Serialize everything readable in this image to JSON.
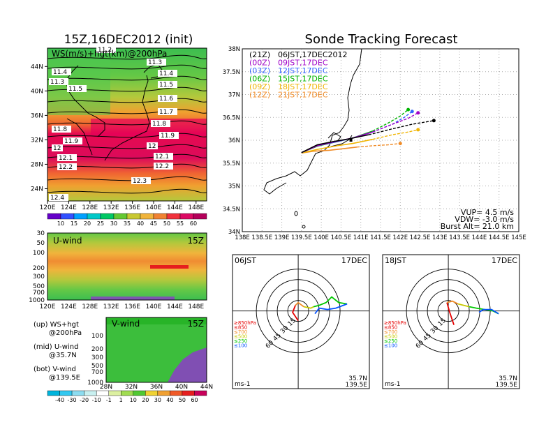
{
  "titles": {
    "left": "15Z,16DEC2012 (init)",
    "right": "Sonde Tracking Forecast"
  },
  "colors": {
    "level_850": "#e60000",
    "level_700": "#f08c28",
    "level_500": "#c8c800",
    "level_250": "#00c800",
    "level_100": "#0050ff",
    "track_21z": "#000000",
    "track_00z": "#a000c8",
    "track_03z": "#3264ff",
    "track_06z": "#00b400",
    "track_09z": "#f0b400",
    "track_12z": "#f08c28"
  },
  "ws_map": {
    "label": "WS(m/s)+hgt(km)@200hPa",
    "lon_ticks": [
      "120E",
      "124E",
      "128E",
      "132E",
      "136E",
      "140E",
      "144E",
      "148E"
    ],
    "lat_ticks": [
      "24N",
      "28N",
      "32N",
      "36N",
      "40N",
      "44N"
    ],
    "contour_labels": [
      {
        "t": "11.2"
      },
      {
        "t": "11.3"
      },
      {
        "t": "11.3"
      },
      {
        "t": "11.4"
      },
      {
        "t": "11.4"
      },
      {
        "t": "11.5"
      },
      {
        "t": "11.5"
      },
      {
        "t": "11.6"
      },
      {
        "t": "11.7"
      },
      {
        "t": "11.8"
      },
      {
        "t": "11.8"
      },
      {
        "t": "11.9"
      },
      {
        "t": "11.9"
      },
      {
        "t": "12"
      },
      {
        "t": "12"
      },
      {
        "t": "12.1"
      },
      {
        "t": "12.1"
      },
      {
        "t": "12.2"
      },
      {
        "t": "12.2"
      },
      {
        "t": "12.3"
      },
      {
        "t": "12.4"
      }
    ]
  },
  "ws_colorbar": {
    "values": [
      "10",
      "15",
      "20",
      "25",
      "30",
      "35",
      "40",
      "45",
      "50",
      "55",
      "60"
    ]
  },
  "u_panel": {
    "label": "U-wind",
    "time": "15Z",
    "p_ticks": [
      "30",
      "50",
      "100",
      "200",
      "300",
      "500",
      "700",
      "1000"
    ],
    "lon_ticks": [
      "120E",
      "124E",
      "128E",
      "132E",
      "136E",
      "140E",
      "144E",
      "148E"
    ]
  },
  "v_panel": {
    "label": "V-wind",
    "time": "15Z",
    "p_ticks": [
      "100",
      "200",
      "300",
      "500",
      "700",
      "1000"
    ],
    "lat_ticks": [
      "28N",
      "32N",
      "36N",
      "40N",
      "44N"
    ]
  },
  "wind_colorbar": {
    "values": [
      "-40",
      "-30",
      "-20",
      "-10",
      "-1",
      "1",
      "10",
      "20",
      "30",
      "40",
      "50",
      "60"
    ]
  },
  "notes": {
    "up": "(up) WS+hgt",
    "up2": "@200hPa",
    "mid": "(mid) U-wind",
    "mid2": "@35.7N",
    "bot": "(bot) V-wind",
    "bot2": "@139.5E"
  },
  "track": {
    "lat_ticks": [
      "38N",
      "37.5N",
      "37N",
      "36.5N",
      "36N",
      "35.5N",
      "35N",
      "34.5N",
      "34N"
    ],
    "lon_ticks": [
      "138E",
      "138.5E",
      "139E",
      "139.5E",
      "140E",
      "140.5E",
      "141E",
      "141.5E",
      "142E",
      "142.5E",
      "143E",
      "143.5E",
      "144E",
      "144.5E",
      "145E"
    ],
    "legend": [
      {
        "code": "(21Z)",
        "text": "06JST,17DEC2012"
      },
      {
        "code": "(00Z)",
        "text": "09JST,17DEC"
      },
      {
        "code": "(03Z)",
        "text": "12JST,17DEC"
      },
      {
        "code": "(06Z)",
        "text": "15JST,17DEC"
      },
      {
        "code": "(09Z)",
        "text": "18JST,17DEC"
      },
      {
        "code": "(12Z)",
        "text": "21JST,17DEC"
      }
    ],
    "params": {
      "vup": "VUP= 4.5 m/s",
      "vdw": "VDW= -3.0 m/s",
      "burst": "Burst Alt= 21.0 km"
    }
  },
  "hodo_left": {
    "time": "06JST",
    "date": "17DEC",
    "rings": [
      "15",
      "30",
      "45",
      "60"
    ],
    "levels": [
      "≥850hPa",
      "≤850",
      "≤700",
      "≤500",
      "≤250",
      "≤100"
    ],
    "unit": "ms-1",
    "lat": "35.7N",
    "lon": "139.5E"
  },
  "hodo_right": {
    "time": "18JST",
    "date": "17DEC",
    "rings": [
      "15",
      "30",
      "45",
      "60"
    ],
    "levels": [
      "≥850hPa",
      "≤850",
      "≤700",
      "≤500",
      "≤250",
      "≤100"
    ],
    "unit": "ms-1",
    "lat": "35.7N",
    "lon": "139.5E"
  },
  "chart_data": [
    {
      "type": "heatmap",
      "title": "WS(m/s)+hgt(km)@200hPa",
      "xlim": [
        120,
        150
      ],
      "ylim": [
        22,
        47
      ],
      "x_ticks": [
        120,
        124,
        128,
        132,
        136,
        140,
        144,
        148
      ],
      "y_ticks": [
        24,
        28,
        32,
        36,
        40,
        44
      ],
      "colorbar": [
        10,
        15,
        20,
        25,
        30,
        35,
        40,
        45,
        50,
        55,
        60
      ]
    },
    {
      "type": "heatmap",
      "title": "U-wind",
      "xlim": [
        120,
        150
      ],
      "y_ticks": [
        30,
        50,
        100,
        200,
        300,
        500,
        700,
        1000
      ]
    },
    {
      "type": "heatmap",
      "title": "V-wind",
      "xlim": [
        28,
        44
      ],
      "y_ticks": [
        100,
        200,
        300,
        500,
        700,
        1000
      ],
      "colorbar": [
        -40,
        -30,
        -20,
        -10,
        -1,
        1,
        10,
        20,
        30,
        40,
        50,
        60
      ]
    },
    {
      "type": "line",
      "title": "Sonde Tracking Forecast",
      "xlim": [
        138,
        145
      ],
      "ylim": [
        34,
        38
      ],
      "series": [
        {
          "name": "(21Z)",
          "x": [
            139.5,
            139.9,
            140.3,
            140.7,
            141.2,
            141.8,
            142.3,
            142.85
          ],
          "y": [
            35.73,
            35.9,
            35.97,
            36.03,
            36.12,
            36.25,
            36.35,
            36.43
          ]
        },
        {
          "name": "(00Z)",
          "x": [
            139.5,
            139.9,
            140.4,
            140.8,
            141.3,
            141.8,
            142.2,
            142.45
          ],
          "y": [
            35.73,
            35.88,
            35.98,
            36.05,
            36.18,
            36.35,
            36.48,
            36.6
          ]
        },
        {
          "name": "(03Z)",
          "x": [
            139.5,
            139.9,
            140.4,
            140.8,
            141.3,
            141.8,
            142.1,
            142.3
          ],
          "y": [
            35.73,
            35.88,
            35.97,
            36.05,
            36.18,
            36.35,
            36.5,
            36.63
          ]
        },
        {
          "name": "(06Z)",
          "x": [
            139.5,
            139.9,
            140.4,
            140.8,
            141.3,
            141.7,
            142.0,
            142.2
          ],
          "y": [
            35.73,
            35.87,
            35.97,
            36.05,
            36.2,
            36.38,
            36.53,
            36.67
          ]
        },
        {
          "name": "(09Z)",
          "x": [
            139.5,
            139.9,
            140.4,
            140.8,
            141.3,
            141.8,
            142.2,
            142.45
          ],
          "y": [
            35.72,
            35.8,
            35.88,
            35.93,
            36.02,
            36.12,
            36.18,
            36.23
          ]
        },
        {
          "name": "(12Z)",
          "x": [
            139.5,
            139.8,
            140.2,
            140.6,
            140.9,
            141.3,
            141.7,
            142.0
          ],
          "y": [
            35.72,
            35.76,
            35.78,
            35.82,
            35.85,
            35.88,
            35.9,
            35.93
          ]
        }
      ]
    }
  ]
}
